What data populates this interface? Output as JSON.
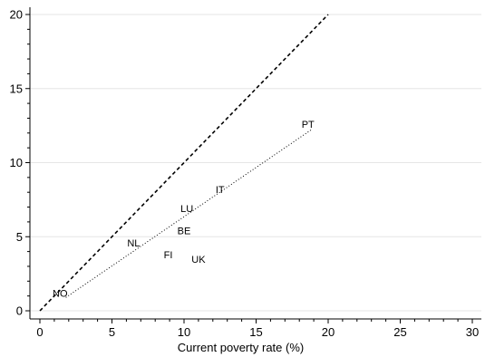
{
  "chart_data": {
    "type": "scatter",
    "title": "",
    "xlabel": "Current poverty rate (%)",
    "ylabel": "",
    "xlim": [
      0,
      30
    ],
    "ylim": [
      0,
      20
    ],
    "xticks": [
      0,
      5,
      10,
      15,
      20,
      25,
      30
    ],
    "yticks": [
      0,
      5,
      10,
      15,
      20
    ],
    "grid": "horizontal",
    "points": [
      {
        "label": "NO",
        "x": 1.4,
        "y": 1.2
      },
      {
        "label": "NL",
        "x": 6.5,
        "y": 4.6
      },
      {
        "label": "FI",
        "x": 8.9,
        "y": 3.8
      },
      {
        "label": "BE",
        "x": 10.0,
        "y": 5.4
      },
      {
        "label": "UK",
        "x": 11.0,
        "y": 3.5
      },
      {
        "label": "LU",
        "x": 10.2,
        "y": 6.9
      },
      {
        "label": "IT",
        "x": 12.5,
        "y": 8.2
      },
      {
        "label": "PT",
        "x": 18.6,
        "y": 12.6
      }
    ],
    "lines": [
      {
        "style": "dashed",
        "x": [
          0,
          20
        ],
        "y": [
          0,
          20
        ]
      },
      {
        "style": "dotted",
        "x": [
          1.8,
          18.8
        ],
        "y": [
          0.9,
          12.2
        ]
      }
    ]
  }
}
